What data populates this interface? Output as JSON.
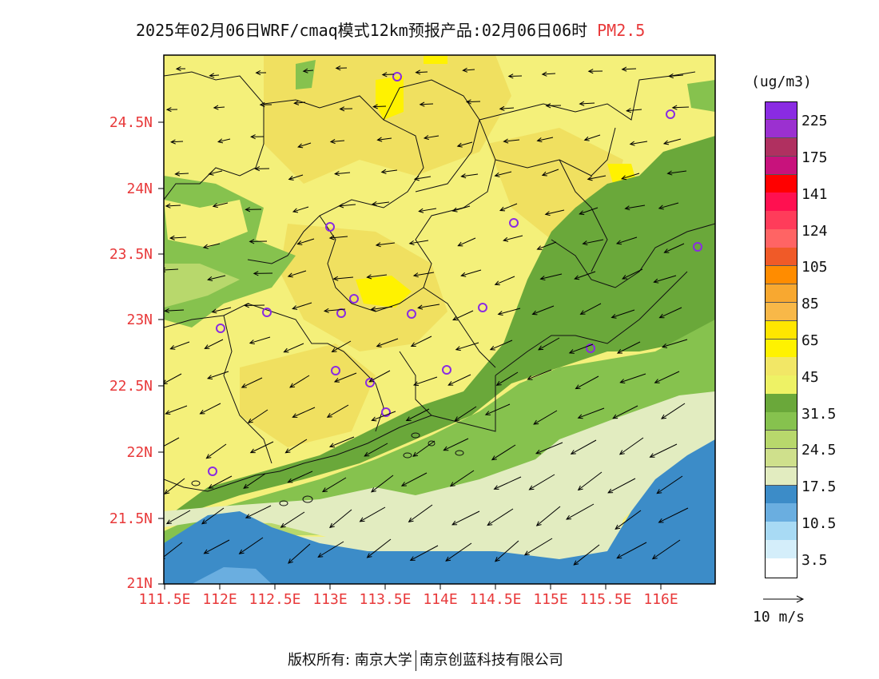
{
  "title": {
    "text": "2025年02月06日WRF/cmaq模式12km预报产品:02月06日06时",
    "pollutant": "PM2.5"
  },
  "axes": {
    "lat_labels": [
      "24.5N",
      "24N",
      "23.5N",
      "23N",
      "22.5N",
      "22N",
      "21.5N",
      "21N"
    ],
    "lon_labels": [
      "111.5E",
      "112E",
      "112.5E",
      "113E",
      "113.5E",
      "114E",
      "114.5E",
      "115E",
      "115.5E",
      "116E"
    ],
    "lat_range": [
      21,
      25
    ],
    "lon_range": [
      111.5,
      116.5
    ]
  },
  "colorbar": {
    "units": "(ug/m3)",
    "labels": [
      "225",
      "175",
      "141",
      "124",
      "105",
      "85",
      "65",
      "45",
      "31.5",
      "24.5",
      "17.5",
      "10.5",
      "3.5"
    ],
    "colors": [
      "#8a2be2",
      "#9b30d0",
      "#b03060",
      "#c8127c",
      "#ff0000",
      "#ff1050",
      "#ff3c5a",
      "#ff6464",
      "#f05a28",
      "#ff8c00",
      "#f8a830",
      "#f8b848",
      "#ffe600",
      "#fff200",
      "#f2e766",
      "#eef265",
      "#6aa83a",
      "#86c24e",
      "#b8d86c",
      "#cfe08c",
      "#e2ecc0",
      "#3c8cc8",
      "#6aaee0",
      "#a8daf4",
      "#d4eefa",
      "#ffffff"
    ]
  },
  "wind_reference": {
    "label": "10 m/s"
  },
  "footer": {
    "left": "版权所有: 南京大学",
    "right": "南京创蓝科技有限公司"
  },
  "colors": {
    "label_red": "#e8393a",
    "land_yellow": "#f4f07a",
    "land_dark_yellow": "#f0e060",
    "coast_green_dark": "#6aa83a",
    "coast_green": "#86c24e",
    "sea_light": "#e2ecc0",
    "sea_blue": "#3c8cc8"
  }
}
